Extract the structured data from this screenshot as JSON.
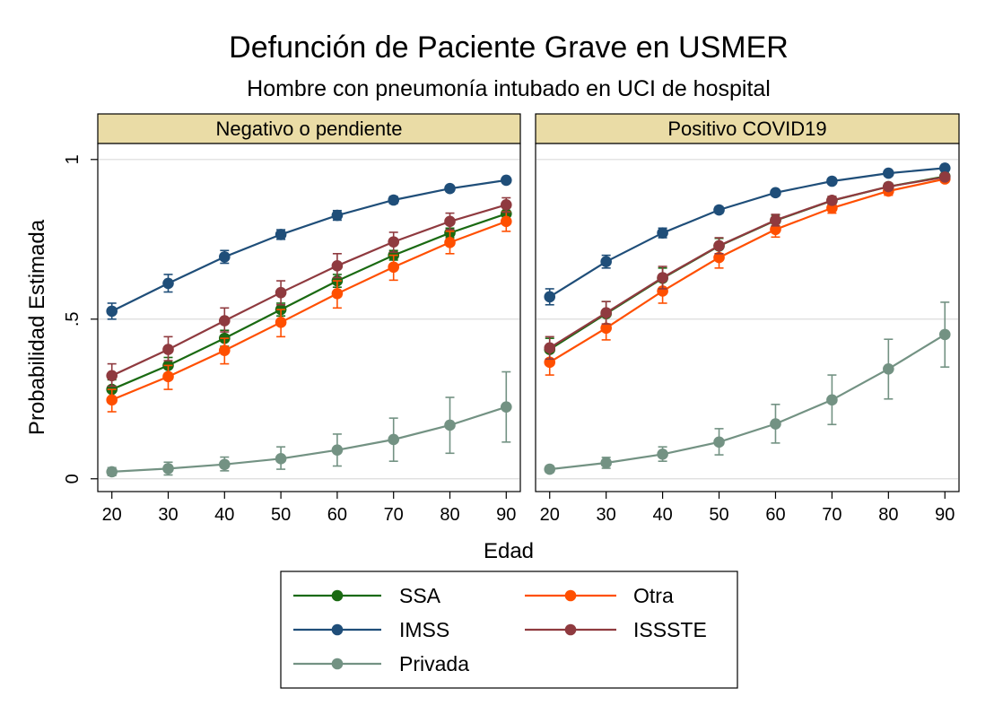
{
  "chart_data": {
    "type": "line",
    "title": "Defunción de Paciente Grave en USMER",
    "subtitle": "Hombre con pneumonía intubado en UCI de hospital",
    "xlabel": "Edad",
    "ylabel": "Probabilidad Estimada",
    "x": [
      20,
      30,
      40,
      50,
      60,
      70,
      80,
      90
    ],
    "xticks": [
      "20",
      "30",
      "40",
      "50",
      "60",
      "70",
      "80",
      "90"
    ],
    "yticks": [
      {
        "value": 0,
        "label": "0"
      },
      {
        "value": 0.5,
        "label": ".5"
      },
      {
        "value": 1,
        "label": "1"
      }
    ],
    "ylim": [
      -0.04,
      1.05
    ],
    "xlim": [
      17.5,
      92.5
    ],
    "grid": true,
    "error_bars": true,
    "legend_position": "bottom",
    "series_styles": [
      {
        "name": "SSA",
        "color": "#1a6a12"
      },
      {
        "name": "IMSS",
        "color": "#1f4e79"
      },
      {
        "name": "Privada",
        "color": "#739283"
      },
      {
        "name": "Otra",
        "color": "#ff4f00"
      },
      {
        "name": "ISSSTE",
        "color": "#8f3a3f"
      }
    ],
    "panels": [
      {
        "title": "Negativo o pendiente",
        "series": [
          {
            "name": "SSA",
            "values": [
              0.28,
              0.355,
              0.44,
              0.53,
              0.62,
              0.7,
              0.77,
              0.83
            ],
            "ci_low": [
              0.25,
              0.33,
              0.415,
              0.51,
              0.6,
              0.685,
              0.755,
              0.81
            ],
            "ci_high": [
              0.31,
              0.38,
              0.465,
              0.55,
              0.64,
              0.715,
              0.785,
              0.85
            ]
          },
          {
            "name": "IMSS",
            "values": [
              0.525,
              0.612,
              0.695,
              0.765,
              0.825,
              0.873,
              0.909,
              0.935
            ],
            "ci_low": [
              0.5,
              0.585,
              0.675,
              0.75,
              0.81,
              0.862,
              0.9,
              0.928
            ],
            "ci_high": [
              0.55,
              0.64,
              0.715,
              0.78,
              0.84,
              0.884,
              0.918,
              0.942
            ]
          },
          {
            "name": "Privada",
            "values": [
              0.022,
              0.032,
              0.045,
              0.063,
              0.09,
              0.123,
              0.168,
              0.225
            ],
            "ci_low": [
              0.01,
              0.012,
              0.025,
              0.03,
              0.04,
              0.055,
              0.08,
              0.115
            ],
            "ci_high": [
              0.035,
              0.052,
              0.068,
              0.1,
              0.14,
              0.19,
              0.255,
              0.335
            ]
          },
          {
            "name": "Otra",
            "values": [
              0.247,
              0.32,
              0.402,
              0.49,
              0.58,
              0.663,
              0.74,
              0.806
            ],
            "ci_low": [
              0.21,
              0.28,
              0.36,
              0.445,
              0.535,
              0.622,
              0.705,
              0.775
            ],
            "ci_high": [
              0.28,
              0.355,
              0.44,
              0.53,
              0.62,
              0.7,
              0.775,
              0.836
            ]
          },
          {
            "name": "ISSSTE",
            "values": [
              0.323,
              0.405,
              0.495,
              0.583,
              0.667,
              0.742,
              0.806,
              0.858
            ],
            "ci_low": [
              0.29,
              0.37,
              0.46,
              0.545,
              0.63,
              0.71,
              0.78,
              0.835
            ],
            "ci_high": [
              0.36,
              0.445,
              0.535,
              0.62,
              0.705,
              0.772,
              0.832,
              0.88
            ]
          }
        ]
      },
      {
        "title": "Positivo COVID19",
        "series": [
          {
            "name": "SSA",
            "values": [
              0.405,
              0.517,
              0.628,
              0.729,
              0.809,
              0.871,
              0.915,
              0.947
            ],
            "ci_low": [
              0.37,
              0.48,
              0.595,
              0.705,
              0.792,
              0.858,
              0.905,
              0.94
            ],
            "ci_high": [
              0.44,
              0.555,
              0.66,
              0.753,
              0.826,
              0.884,
              0.925,
              0.954
            ]
          },
          {
            "name": "IMSS",
            "values": [
              0.57,
              0.68,
              0.77,
              0.842,
              0.896,
              0.932,
              0.957,
              0.973
            ],
            "ci_low": [
              0.545,
              0.66,
              0.755,
              0.832,
              0.889,
              0.927,
              0.954,
              0.971
            ],
            "ci_high": [
              0.595,
              0.7,
              0.785,
              0.852,
              0.903,
              0.937,
              0.96,
              0.975
            ]
          },
          {
            "name": "Privada",
            "values": [
              0.03,
              0.05,
              0.077,
              0.115,
              0.172,
              0.247,
              0.344,
              0.452
            ],
            "ci_low": [
              0.02,
              0.033,
              0.055,
              0.075,
              0.112,
              0.17,
              0.25,
              0.35
            ],
            "ci_high": [
              0.04,
              0.067,
              0.1,
              0.157,
              0.233,
              0.325,
              0.437,
              0.553
            ]
          },
          {
            "name": "Otra",
            "values": [
              0.365,
              0.472,
              0.588,
              0.693,
              0.781,
              0.848,
              0.901,
              0.939
            ],
            "ci_low": [
              0.325,
              0.435,
              0.55,
              0.66,
              0.757,
              0.832,
              0.888,
              0.93
            ],
            "ci_high": [
              0.4,
              0.51,
              0.625,
              0.725,
              0.805,
              0.865,
              0.913,
              0.948
            ]
          },
          {
            "name": "ISSSTE",
            "values": [
              0.41,
              0.52,
              0.63,
              0.73,
              0.81,
              0.872,
              0.915,
              0.945
            ],
            "ci_low": [
              0.375,
              0.485,
              0.595,
              0.705,
              0.792,
              0.86,
              0.905,
              0.938
            ],
            "ci_high": [
              0.445,
              0.555,
              0.665,
              0.755,
              0.828,
              0.884,
              0.925,
              0.952
            ]
          }
        ]
      }
    ],
    "legend": [
      {
        "name": "SSA",
        "color": "#1a6a12"
      },
      {
        "name": "Otra",
        "color": "#ff4f00"
      },
      {
        "name": "IMSS",
        "color": "#1f4e79"
      },
      {
        "name": "ISSSTE",
        "color": "#8f3a3f"
      },
      {
        "name": "Privada",
        "color": "#739283"
      }
    ]
  },
  "colors": {
    "strip_fill": "#eadca6",
    "grid": "#dcdcdc",
    "frame": "#000000"
  }
}
